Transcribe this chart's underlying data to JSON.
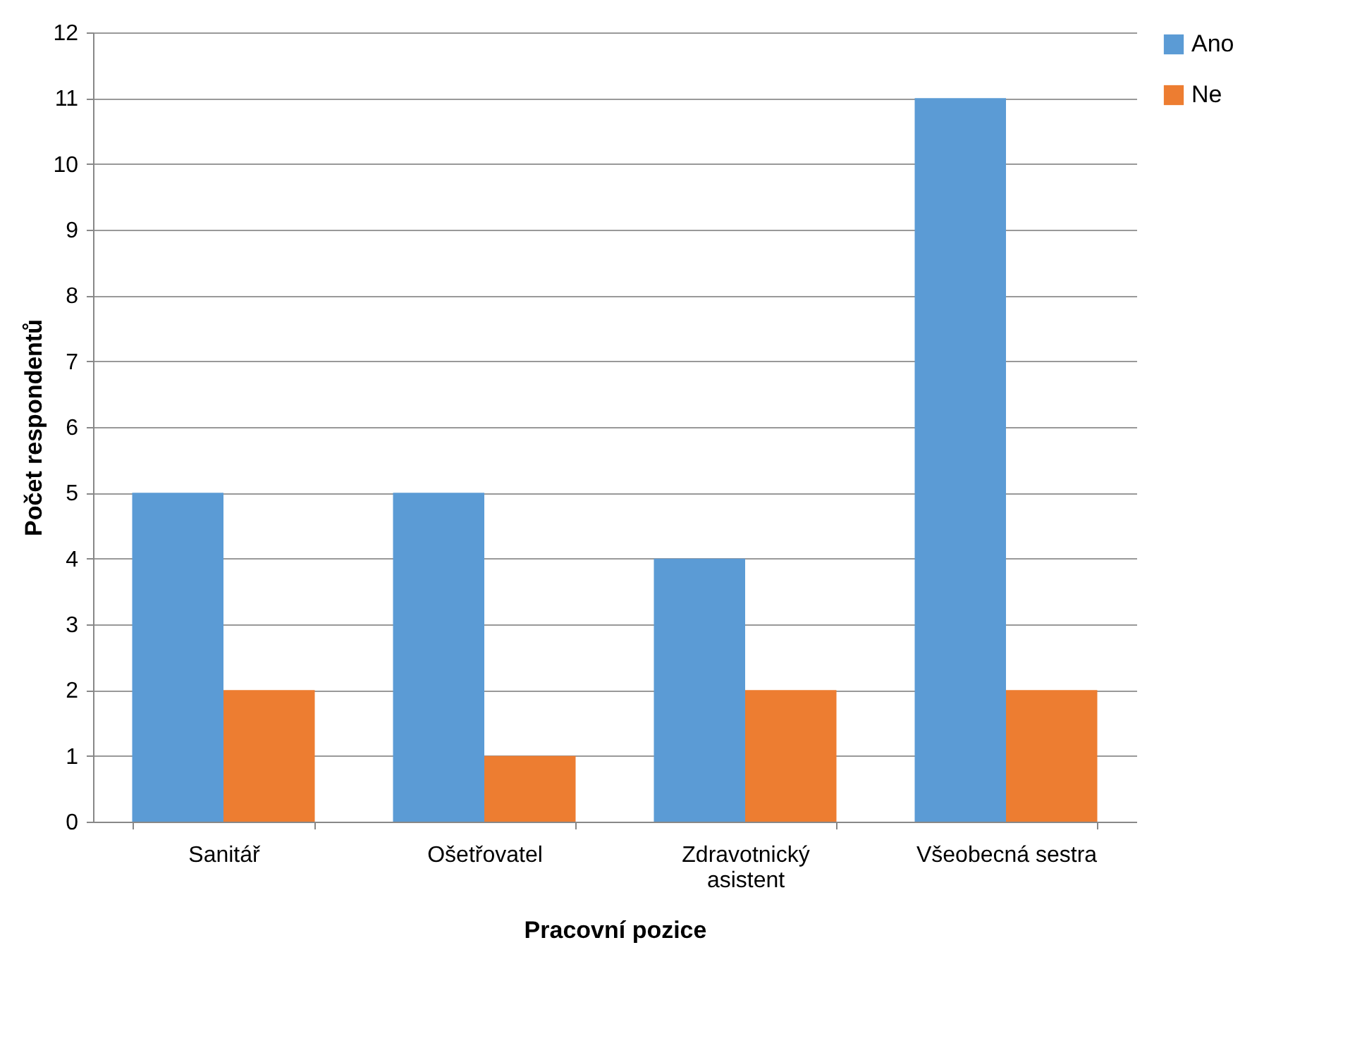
{
  "chart_data": {
    "type": "bar",
    "xlabel": "Pracovní pozice",
    "ylabel": "Počet respondentů",
    "categories": [
      "Sanitář",
      "Ošetřovatel",
      "Zdravotnický asistent",
      "Všeobecná sestra"
    ],
    "series": [
      {
        "name": "Ano",
        "color": "#5b9bd5",
        "values": [
          5,
          5,
          4,
          11
        ]
      },
      {
        "name": "Ne",
        "color": "#ed7d31",
        "values": [
          2,
          1,
          2,
          2
        ]
      }
    ],
    "ylim": [
      0,
      12
    ],
    "yticks": [
      0,
      1,
      2,
      3,
      4,
      5,
      6,
      7,
      8,
      9,
      10,
      11,
      12
    ],
    "grid": "y",
    "legend": "right"
  }
}
